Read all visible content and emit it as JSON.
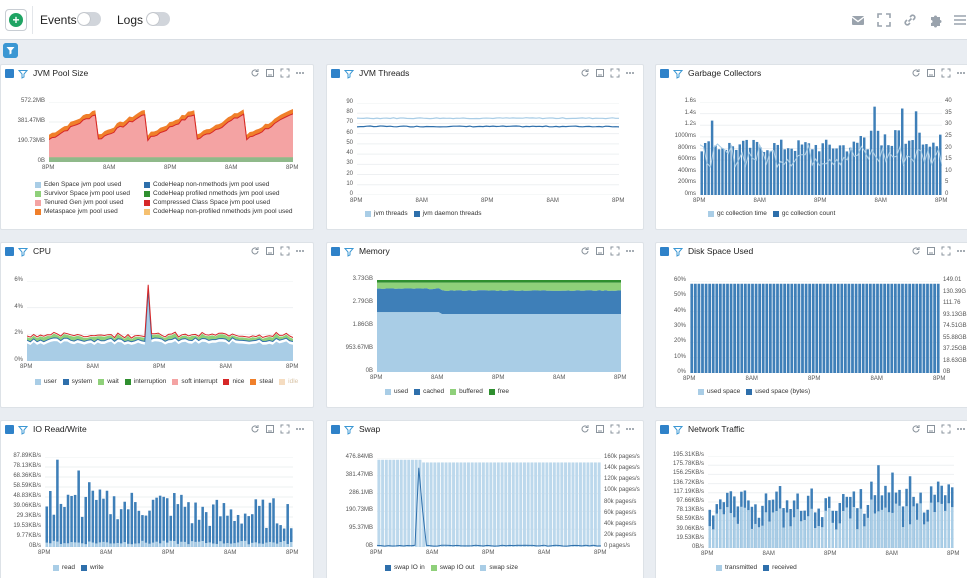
{
  "topbar": {
    "events_label": "Events",
    "logs_label": "Logs",
    "events_on": false,
    "logs_on": false
  },
  "colors": {
    "accent": "#3b97d3",
    "dark_blue": "#2e6fab",
    "light_blue": "#a9cde6",
    "green_add": "#1fa463"
  },
  "panels": [
    {
      "title": "JVM Pool Size",
      "yticks": [
        "572.2MB",
        "381.47MB",
        "190.73MB",
        "0B"
      ],
      "xticks": [
        "8PM",
        "8AM",
        "8PM",
        "8AM",
        "8PM"
      ],
      "legend": [
        {
          "label": "Eden Space jvm pool used",
          "color": "#a9cde6"
        },
        {
          "label": "CodeHeap non-nmethods jvm pool used",
          "color": "#2e6fab"
        },
        {
          "label": "Survivor Space jvm pool used",
          "color": "#8fd07a"
        },
        {
          "label": "CodeHeap profiled nmethods jvm pool used",
          "color": "#2f8f2f"
        },
        {
          "label": "Tenured Gen jvm pool used",
          "color": "#f4a3a3"
        },
        {
          "label": "Compressed Class Space jvm pool used",
          "color": "#d62728"
        },
        {
          "label": "Metaspace jvm pool used",
          "color": "#f07f2a"
        },
        {
          "label": "CodeHeap non-profiled nmethods jvm pool used",
          "color": "#f5c070"
        }
      ]
    },
    {
      "title": "JVM Threads",
      "yticks": [
        "90",
        "80",
        "70",
        "60",
        "50",
        "40",
        "30",
        "20",
        "10",
        "0"
      ],
      "xticks": [
        "8PM",
        "8AM",
        "8PM",
        "8AM",
        "8PM"
      ],
      "legend": [
        {
          "label": "jvm threads",
          "color": "#a9cde6"
        },
        {
          "label": "jvm daemon threads",
          "color": "#2e6fab"
        }
      ]
    },
    {
      "title": "Garbage Collectors",
      "yticks": [
        "1.6s",
        "1.4s",
        "1.2s",
        "1000ms",
        "800ms",
        "600ms",
        "400ms",
        "200ms",
        "0ms"
      ],
      "yticks_right": [
        "40",
        "35",
        "30",
        "25",
        "20",
        "15",
        "10",
        "5",
        "0"
      ],
      "xticks": [
        "8PM",
        "8AM",
        "8PM",
        "8AM",
        "8PM"
      ],
      "legend": [
        {
          "label": "gc collection time",
          "color": "#a9cde6"
        },
        {
          "label": "gc collection count",
          "color": "#2e6fab"
        }
      ]
    },
    {
      "title": "CPU",
      "yticks": [
        "6%",
        "4%",
        "2%",
        "0%"
      ],
      "xticks": [
        "8PM",
        "8AM",
        "8PM",
        "8AM",
        "8PM"
      ],
      "legend": [
        {
          "label": "user",
          "color": "#a9cde6"
        },
        {
          "label": "system",
          "color": "#2e6fab"
        },
        {
          "label": "wait",
          "color": "#8fd07a"
        },
        {
          "label": "interruption",
          "color": "#2f8f2f"
        },
        {
          "label": "soft interrupt",
          "color": "#f4a3a3"
        },
        {
          "label": "nice",
          "color": "#d62728"
        },
        {
          "label": "steal",
          "color": "#f07f2a"
        },
        {
          "label": "idle",
          "color": "#f5dcc0"
        }
      ]
    },
    {
      "title": "Memory",
      "yticks": [
        "3.73GB",
        "2.79GB",
        "1.86GB",
        "953.67MB",
        "0B"
      ],
      "xticks": [
        "8PM",
        "8AM",
        "8PM",
        "8AM",
        "8PM"
      ],
      "legend": [
        {
          "label": "used",
          "color": "#a9cde6"
        },
        {
          "label": "cached",
          "color": "#2e6fab"
        },
        {
          "label": "buffered",
          "color": "#8fd07a"
        },
        {
          "label": "free",
          "color": "#2f8f2f"
        }
      ]
    },
    {
      "title": "Disk Space Used",
      "yticks": [
        "60%",
        "50%",
        "40%",
        "30%",
        "20%",
        "10%",
        "0%"
      ],
      "yticks_right": [
        "149.01",
        "130.39G",
        "111.76",
        "93.13GB",
        "74.51GB",
        "55.88GB",
        "37.25GB",
        "18.63GB",
        "0B"
      ],
      "xticks": [
        "8PM",
        "8AM",
        "8PM",
        "8AM",
        "8PM"
      ],
      "legend": [
        {
          "label": "used space",
          "color": "#a9cde6"
        },
        {
          "label": "used space (bytes)",
          "color": "#2e6fab"
        }
      ]
    },
    {
      "title": "IO Read/Write",
      "yticks": [
        "87.89KB/s",
        "78.13KB/s",
        "68.36KB/s",
        "58.59KB/s",
        "48.83KB/s",
        "39.06KB/s",
        "29.3KB/s",
        "19.53KB/s",
        "9.77KB/s",
        "0B/s"
      ],
      "xticks": [
        "8PM",
        "8AM",
        "8PM",
        "8AM",
        "8PM"
      ],
      "legend": [
        {
          "label": "read",
          "color": "#a9cde6"
        },
        {
          "label": "write",
          "color": "#2e6fab"
        }
      ]
    },
    {
      "title": "Swap",
      "yticks": [
        "476.84MB",
        "381.47MB",
        "286.1MB",
        "190.73MB",
        "95.37MB",
        "0B"
      ],
      "yticks_right": [
        "160k pages/s",
        "140k pages/s",
        "120k pages/s",
        "100k pages/s",
        "80k pages/s",
        "60k pages/s",
        "40k pages/s",
        "20k pages/s",
        "0 pages/s"
      ],
      "xticks": [
        "8PM",
        "8AM",
        "8PM",
        "8AM",
        "8PM"
      ],
      "legend": [
        {
          "label": "swap IO in",
          "color": "#2e6fab"
        },
        {
          "label": "swap IO out",
          "color": "#8fd07a"
        },
        {
          "label": "swap size",
          "color": "#a9cde6"
        }
      ]
    },
    {
      "title": "Network Traffic",
      "yticks": [
        "195.31KB/s",
        "175.78KB/s",
        "156.25KB/s",
        "136.72KB/s",
        "117.19KB/s",
        "97.66KB/s",
        "78.13KB/s",
        "58.59KB/s",
        "39.06KB/s",
        "19.53KB/s",
        "0B/s"
      ],
      "xticks": [
        "8PM",
        "8AM",
        "8PM",
        "8AM",
        "8PM"
      ],
      "legend": [
        {
          "label": "transmitted",
          "color": "#a9cde6"
        },
        {
          "label": "received",
          "color": "#2e6fab"
        }
      ]
    }
  ]
}
